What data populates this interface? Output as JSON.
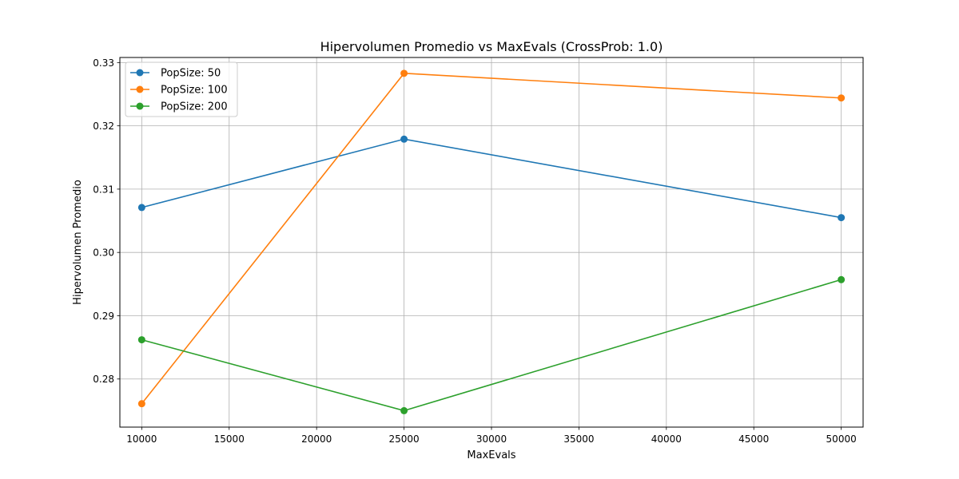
{
  "chart_data": {
    "type": "line",
    "title": "Hipervolumen Promedio vs MaxEvals (CrossProb: 1.0)",
    "xlabel": "MaxEvals",
    "ylabel": "Hipervolumen Promedio",
    "x": [
      10000,
      25000,
      50000
    ],
    "xlim": [
      8750,
      51250
    ],
    "ylim": [
      0.2724,
      0.3308
    ],
    "xticks": [
      10000,
      15000,
      20000,
      25000,
      30000,
      35000,
      40000,
      45000,
      50000
    ],
    "xtick_labels": [
      "10000",
      "15000",
      "20000",
      "25000",
      "30000",
      "35000",
      "40000",
      "45000",
      "50000"
    ],
    "yticks": [
      0.28,
      0.29,
      0.3,
      0.31,
      0.32,
      0.33
    ],
    "ytick_labels": [
      "0.28",
      "0.29",
      "0.30",
      "0.31",
      "0.32",
      "0.33"
    ],
    "grid": true,
    "legend_position": "top-left",
    "series": [
      {
        "name": "PopSize: 50",
        "color": "#1f77b4",
        "values": [
          0.3071,
          0.3179,
          0.3055
        ]
      },
      {
        "name": "PopSize: 100",
        "color": "#ff7f0e",
        "values": [
          0.2761,
          0.3283,
          0.3244
        ]
      },
      {
        "name": "PopSize: 200",
        "color": "#2ca02c",
        "values": [
          0.2862,
          0.275,
          0.2957
        ]
      }
    ]
  }
}
